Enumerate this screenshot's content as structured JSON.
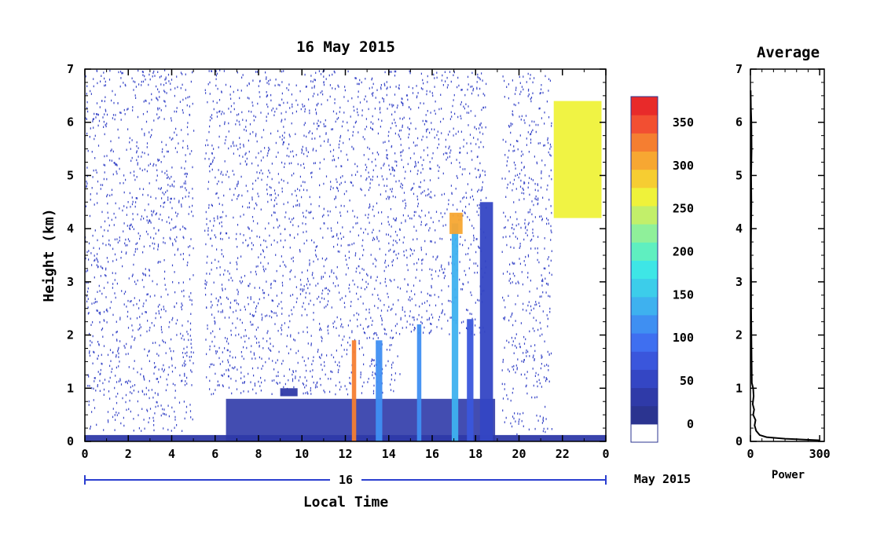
{
  "chart_data": [
    {
      "type": "heatmap",
      "title": "16 May 2015",
      "xlabel": "Local Time",
      "ylabel": "Height (km)",
      "x_ticks": [
        "0",
        "2",
        "4",
        "6",
        "8",
        "10",
        "12",
        "14",
        "16",
        "18",
        "20",
        "22",
        "0"
      ],
      "y_ticks": [
        "0",
        "1",
        "2",
        "3",
        "4",
        "5",
        "6",
        "7"
      ],
      "xlim": [
        0,
        24
      ],
      "ylim": [
        0,
        7
      ],
      "date_bar": {
        "day": "16",
        "month_year": "May 2015"
      },
      "colorbar": {
        "ticks": [
          "0",
          "50",
          "100",
          "150",
          "200",
          "250",
          "300",
          "350"
        ],
        "range": [
          0,
          380
        ],
        "colors": [
          "#ffffff",
          "#2b3490",
          "#2f3aa8",
          "#3446c4",
          "#3a56dc",
          "#3f6ff0",
          "#3f8ff2",
          "#3eb1ef",
          "#3ccdea",
          "#3ee6e6",
          "#5fefc0",
          "#8ff09a",
          "#c2ef6a",
          "#eff23a",
          "#f6cd32",
          "#f7a732",
          "#f57e31",
          "#f24f32",
          "#e82a2a"
        ]
      },
      "features": [
        {
          "kind": "ground_layer",
          "x": [
            0,
            24
          ],
          "y": [
            0.0,
            0.12
          ],
          "value": 40
        },
        {
          "kind": "boundary_layer",
          "x": [
            6.5,
            18.9
          ],
          "y": [
            0.0,
            0.8
          ],
          "value": 30
        },
        {
          "kind": "cloud_column",
          "x": [
            18.2,
            18.8
          ],
          "y": [
            0.0,
            4.5
          ],
          "value": 60
        },
        {
          "kind": "cloud_column",
          "x": [
            16.9,
            17.2
          ],
          "y": [
            0.0,
            4.1
          ],
          "value": 140
        },
        {
          "kind": "cloud_column",
          "x": [
            17.6,
            17.9
          ],
          "y": [
            0.0,
            2.3
          ],
          "value": 80
        },
        {
          "kind": "cloud_column",
          "x": [
            13.4,
            13.7
          ],
          "y": [
            0.0,
            1.9
          ],
          "value": 120
        },
        {
          "kind": "cloud_column",
          "x": [
            12.3,
            12.5
          ],
          "y": [
            0.0,
            1.9
          ],
          "value": 330
        },
        {
          "kind": "cloud_column",
          "x": [
            15.3,
            15.5
          ],
          "y": [
            0.0,
            2.2
          ],
          "value": 110
        },
        {
          "kind": "high_cloud",
          "x": [
            21.6,
            23.8
          ],
          "y": [
            4.2,
            6.4
          ],
          "value": 260
        },
        {
          "kind": "elevated_layer",
          "x": [
            16.8,
            17.4
          ],
          "y": [
            3.9,
            4.3
          ],
          "value": 300
        },
        {
          "kind": "elevated_layer",
          "x": [
            9.0,
            9.8
          ],
          "y": [
            0.85,
            1.0
          ],
          "value": 40
        }
      ],
      "noise_regions": [
        {
          "x": [
            0,
            5.0
          ],
          "y": [
            0.2,
            7
          ]
        },
        {
          "x": [
            5.5,
            14.5
          ],
          "y": [
            0.9,
            7
          ]
        },
        {
          "x": [
            14.5,
            18.5
          ],
          "y": [
            2.0,
            7
          ]
        },
        {
          "x": [
            19.2,
            21.5
          ],
          "y": [
            0.15,
            7
          ]
        }
      ]
    },
    {
      "type": "line",
      "title": "Average",
      "xlabel": "Power",
      "x_ticks": [
        "0",
        "300"
      ],
      "y_ticks": [
        "0",
        "1",
        "2",
        "3",
        "4",
        "5",
        "6",
        "7"
      ],
      "xlim": [
        0,
        320
      ],
      "ylim": [
        0,
        7
      ],
      "series": [
        {
          "points": [
            [
              300,
              0.02
            ],
            [
              150,
              0.05
            ],
            [
              70,
              0.08
            ],
            [
              40,
              0.12
            ],
            [
              25,
              0.2
            ],
            [
              18,
              0.3
            ],
            [
              22,
              0.4
            ],
            [
              12,
              0.5
            ],
            [
              16,
              0.6
            ],
            [
              10,
              0.7
            ],
            [
              14,
              0.85
            ],
            [
              12,
              1.0
            ],
            [
              6,
              1.1
            ],
            [
              5,
              1.5
            ],
            [
              4,
              2.0
            ],
            [
              3,
              2.5
            ],
            [
              3,
              3.0
            ],
            [
              2,
              3.5
            ],
            [
              3,
              4.0
            ],
            [
              4,
              4.5
            ],
            [
              3,
              5.0
            ],
            [
              5,
              5.5
            ],
            [
              4,
              6.0
            ],
            [
              2,
              6.3
            ],
            [
              1,
              6.6
            ]
          ]
        }
      ]
    }
  ]
}
